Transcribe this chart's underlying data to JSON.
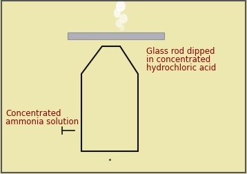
{
  "bg_color": "#EDE8B0",
  "border_color": "#555555",
  "bottle_outline_color": "#111111",
  "liquid_color": "#A8DCE8",
  "glass_rod_color": "#B0B0B8",
  "label_color": "#8B0000",
  "arrow_color": "#111111",
  "text_left_line1": "Concentrated",
  "text_left_line2": "ammonia solution",
  "text_right_line1": "Glass rod dipped",
  "text_right_line2": "in concentrated",
  "text_right_line3": "hydrochloric acid",
  "figsize": [
    3.58,
    2.53
  ],
  "dpi": 100
}
